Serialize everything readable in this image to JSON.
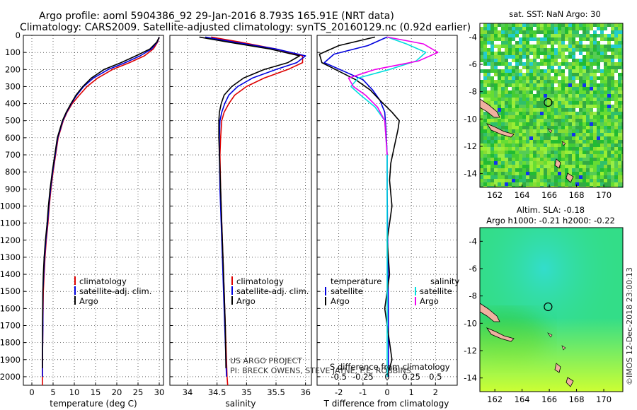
{
  "header": {
    "title_line1": "Argo profile: aoml 5904386_92 29-Jan-2016 8.793S 165.91E (NRT data)",
    "title_line2": "Climatology: CARS2009. Satellite-adjusted climatology: synTS_20160129.nc (0.92d earlier)"
  },
  "credits": {
    "line1": "US ARGO PROJECT",
    "line2": "PI: BRECK OWENS, STEVE JAYNE, P.E. ROBBINS",
    "stamp": "©IMOS 12-Dec-2018 23:00:13"
  },
  "colors": {
    "climatology": "#dd0000",
    "satellite": "#0000dd",
    "argo": "#000000",
    "sal_satellite": "#00dddd",
    "sal_argo": "#ee00ee",
    "map_sst_base": "#33cc33",
    "map_sla_base": "#33dd88"
  },
  "chart_data": [
    {
      "type": "line",
      "id": "temperature",
      "xlabel": "temperature (deg C)",
      "xlim": [
        -2,
        31
      ],
      "xticks": [
        0,
        5,
        10,
        15,
        20,
        25,
        30
      ],
      "ylim": [
        0,
        2050
      ],
      "yticks": [
        0,
        100,
        200,
        300,
        400,
        500,
        600,
        700,
        800,
        900,
        1000,
        1100,
        1200,
        1300,
        1400,
        1500,
        1600,
        1700,
        1800,
        1900,
        2000
      ],
      "legend": [
        "climatology",
        "satellite-adj. clim.",
        "Argo"
      ],
      "series": [
        {
          "name": "climatology",
          "color": "#dd0000",
          "x": [
            30,
            29.6,
            28.6,
            26.5,
            23.0,
            19.0,
            15.5,
            13.0,
            11.2,
            9.5,
            8.3,
            7.4,
            6.8,
            6.2,
            5.6,
            5.0,
            4.5,
            4.1,
            3.8,
            3.4,
            3.1,
            2.9,
            2.7,
            2.6,
            2.5,
            2.5
          ],
          "y": [
            10,
            40,
            80,
            120,
            160,
            200,
            250,
            300,
            350,
            400,
            450,
            500,
            550,
            600,
            700,
            800,
            900,
            1000,
            1100,
            1200,
            1300,
            1400,
            1500,
            1700,
            1900,
            2050
          ]
        },
        {
          "name": "satellite-adj. clim.",
          "color": "#0000dd",
          "x": [
            30,
            29.5,
            28.2,
            25.5,
            22.0,
            18.0,
            14.5,
            12.2,
            10.6,
            9.3,
            8.2,
            7.3,
            6.7,
            6.1,
            5.5,
            4.9,
            4.4,
            4.0,
            3.7,
            3.3,
            3.0,
            2.8,
            2.6,
            2.6,
            2.5,
            2.5
          ],
          "y": [
            10,
            40,
            80,
            120,
            160,
            200,
            250,
            300,
            350,
            400,
            450,
            500,
            550,
            600,
            700,
            800,
            900,
            1000,
            1100,
            1200,
            1300,
            1400,
            1500,
            1700,
            1900,
            2000
          ]
        },
        {
          "name": "Argo",
          "color": "#000000",
          "x": [
            30,
            29.4,
            27.8,
            24.5,
            21.0,
            17.0,
            14.0,
            12.0,
            10.4,
            9.2,
            8.1,
            7.2,
            6.6,
            6.0,
            5.4,
            4.8,
            4.3,
            3.9,
            3.6,
            3.2,
            2.9,
            2.7,
            2.6,
            2.5,
            2.5
          ],
          "y": [
            10,
            40,
            80,
            120,
            160,
            200,
            250,
            300,
            350,
            400,
            450,
            500,
            550,
            600,
            700,
            800,
            900,
            1000,
            1100,
            1200,
            1300,
            1400,
            1500,
            1700,
            1950
          ]
        }
      ]
    },
    {
      "type": "line",
      "id": "salinity",
      "xlabel": "salinity",
      "xlim": [
        33.7,
        36.1
      ],
      "xticks": [
        34,
        34.5,
        35,
        35.5,
        36
      ],
      "ylim": [
        0,
        2050
      ],
      "legend": [
        "climatology",
        "satellite-adj. clim.",
        "Argo"
      ],
      "series": [
        {
          "name": "climatology",
          "color": "#dd0000",
          "x": [
            34.4,
            34.9,
            35.5,
            35.95,
            35.95,
            35.7,
            35.3,
            35.0,
            34.8,
            34.7,
            34.62,
            34.58,
            34.56,
            34.55,
            34.56,
            34.58,
            34.6,
            34.62,
            34.64,
            34.66,
            34.67,
            34.68
          ],
          "y": [
            10,
            40,
            80,
            120,
            160,
            200,
            250,
            300,
            350,
            400,
            450,
            500,
            600,
            700,
            900,
            1100,
            1300,
            1500,
            1700,
            1900,
            2000,
            2050
          ]
        },
        {
          "name": "satellite-adj. clim.",
          "color": "#0000dd",
          "x": [
            34.3,
            34.8,
            35.5,
            36.0,
            35.85,
            35.5,
            35.1,
            34.85,
            34.7,
            34.63,
            34.58,
            34.55,
            34.54,
            34.54,
            34.55,
            34.57,
            34.59,
            34.61,
            34.63,
            34.65,
            34.66
          ],
          "y": [
            10,
            40,
            80,
            120,
            160,
            200,
            250,
            300,
            350,
            400,
            450,
            500,
            600,
            700,
            900,
            1100,
            1300,
            1500,
            1700,
            1900,
            2000
          ]
        },
        {
          "name": "Argo",
          "color": "#000000",
          "x": [
            34.2,
            34.7,
            35.4,
            35.9,
            35.7,
            35.3,
            34.95,
            34.75,
            34.62,
            34.57,
            34.54,
            34.53,
            34.53,
            34.54,
            34.56,
            34.58,
            34.6,
            34.62,
            34.64,
            34.65
          ],
          "y": [
            10,
            40,
            80,
            120,
            160,
            200,
            250,
            300,
            350,
            400,
            450,
            500,
            600,
            700,
            900,
            1100,
            1300,
            1500,
            1700,
            1950
          ]
        }
      ]
    },
    {
      "type": "line",
      "id": "difference",
      "xlabel": "T difference from climatology",
      "xlabel2": "S difference from climatology",
      "xlim": [
        -2.9,
        2.9
      ],
      "xticks": [
        -2,
        -1,
        0,
        1,
        2
      ],
      "xticks2": [
        -0.5,
        -0.25,
        0,
        0.25,
        0.5
      ],
      "ylim": [
        0,
        2050
      ],
      "legend_left_title": "temperature",
      "legend_right_title": "salinity",
      "legend_left": [
        "satellite",
        "Argo"
      ],
      "legend_right": [
        "satellite",
        "Argo"
      ],
      "series": [
        {
          "name": "T satellite",
          "color": "#0000dd",
          "x": [
            0,
            -0.8,
            -2.2,
            -2.6,
            -1.8,
            -1.0,
            -0.6,
            -0.3,
            -0.1,
            -0.05,
            0,
            0,
            0.02,
            0.05,
            0.05
          ],
          "y": [
            10,
            60,
            110,
            160,
            210,
            260,
            320,
            380,
            450,
            550,
            700,
            900,
            1200,
            1600,
            2000
          ]
        },
        {
          "name": "T Argo",
          "color": "#000000",
          "x": [
            -0.5,
            -2.0,
            -2.8,
            -2.7,
            -2.0,
            -1.3,
            -0.7,
            -0.3,
            0.2,
            0.5,
            0.45,
            0.3,
            0.15,
            0.1,
            0.2,
            0.0,
            0.1,
            -0.1,
            0.1,
            0.2,
            0.0
          ],
          "y": [
            10,
            60,
            110,
            160,
            210,
            260,
            320,
            380,
            450,
            500,
            550,
            650,
            750,
            850,
            1000,
            1200,
            1400,
            1600,
            1800,
            1900,
            2000
          ]
        },
        {
          "name": "S satellite",
          "color": "#00dddd",
          "x": [
            0,
            0.8,
            1.6,
            1.2,
            0.1,
            -1.2,
            -1.5,
            -1.1,
            -0.5,
            -0.1,
            0,
            0,
            0,
            0
          ],
          "y": [
            10,
            50,
            100,
            150,
            200,
            250,
            300,
            350,
            420,
            500,
            700,
            1000,
            1500,
            2000
          ]
        },
        {
          "name": "S Argo",
          "color": "#ee00ee",
          "x": [
            0,
            1.5,
            2.1,
            1.3,
            -0.5,
            -1.6,
            -1.4,
            -0.9,
            -0.4,
            -0.1,
            0
          ],
          "y": [
            10,
            50,
            100,
            150,
            200,
            250,
            300,
            350,
            420,
            500,
            700
          ]
        }
      ]
    },
    {
      "type": "heatmap",
      "id": "sst_map",
      "title": "sat. SST: NaN Argo: 30",
      "xlim": [
        160.9,
        171.4
      ],
      "xticks": [
        162,
        164,
        166,
        168,
        170
      ],
      "ylim": [
        -15,
        -3
      ],
      "yticks": [
        -4,
        -6,
        -8,
        -10,
        -12,
        -14
      ],
      "marker": {
        "lon": 165.91,
        "lat": -8.793
      }
    },
    {
      "type": "heatmap",
      "id": "sla_map",
      "title": "Altim. SLA: -0.18",
      "title2": "Argo h1000: -0.21 h2000: -0.22",
      "xlim": [
        160.9,
        171.4
      ],
      "xticks": [
        162,
        164,
        166,
        168,
        170
      ],
      "ylim": [
        -15,
        -3
      ],
      "yticks": [
        -4,
        -6,
        -8,
        -10,
        -12,
        -14
      ],
      "marker": {
        "lon": 165.91,
        "lat": -8.793
      }
    }
  ]
}
